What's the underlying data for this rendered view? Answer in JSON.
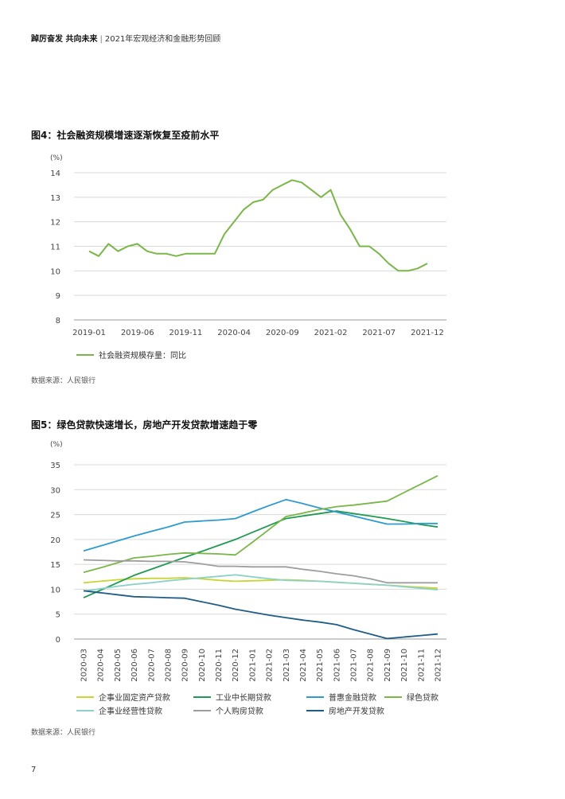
{
  "header": {
    "bold": "踔厉奋发 共向未来",
    "separator": "|",
    "subtitle": "2021年宏观经济和金融形势回顾"
  },
  "page_number": "7",
  "figures": [
    {
      "title": "图4：社会融资规模增速逐渐恢复至疫前水平",
      "unit": "(%)",
      "source": "数据来源：人民银行"
    },
    {
      "title": "图5：绿色贷款快速增长，房地产开发贷款增速趋于零",
      "unit": "(%)",
      "source": "数据来源：人民银行"
    }
  ],
  "chart_data": [
    {
      "type": "line",
      "title": "图4：社会融资规模增速逐渐恢复至疫前水平",
      "ylabel": "(%)",
      "ylim": [
        8,
        14
      ],
      "yticks": [
        8,
        9,
        10,
        11,
        12,
        13,
        14
      ],
      "grid": true,
      "legend_position": "bottom-left",
      "x": [
        "2019-01",
        "2019-02",
        "2019-03",
        "2019-04",
        "2019-05",
        "2019-06",
        "2019-07",
        "2019-08",
        "2019-09",
        "2019-10",
        "2019-11",
        "2019-12",
        "2020-01",
        "2020-02",
        "2020-03",
        "2020-04",
        "2020-05",
        "2020-06",
        "2020-07",
        "2020-08",
        "2020-09",
        "2020-10",
        "2020-11",
        "2020-12",
        "2021-01",
        "2021-02",
        "2021-03",
        "2021-04",
        "2021-05",
        "2021-06",
        "2021-07",
        "2021-08",
        "2021-09",
        "2021-10",
        "2021-11",
        "2021-12"
      ],
      "xticks": [
        "2019-01",
        "2019-06",
        "2019-11",
        "2020-04",
        "2020-09",
        "2021-02",
        "2021-07",
        "2021-12"
      ],
      "xticks_faded": [
        "2019-01",
        "2019-06",
        "2019-11"
      ],
      "series": [
        {
          "name": "社会融资规模存量：同比",
          "color": "#7ab648",
          "values": [
            10.8,
            10.6,
            11.1,
            10.8,
            11.0,
            11.1,
            10.8,
            10.7,
            10.7,
            10.6,
            10.7,
            10.7,
            10.7,
            10.7,
            11.5,
            12.0,
            12.5,
            12.8,
            12.9,
            13.3,
            13.5,
            13.7,
            13.6,
            13.3,
            13.0,
            13.3,
            12.3,
            11.7,
            11.0,
            11.0,
            10.7,
            10.3,
            10.0,
            10.0,
            10.1,
            10.3
          ]
        }
      ]
    },
    {
      "type": "line",
      "title": "图5：绿色贷款快速增长，房地产开发贷款增速趋于零",
      "ylabel": "(%)",
      "ylim": [
        0,
        35
      ],
      "yticks": [
        0,
        5,
        10,
        15,
        20,
        25,
        30,
        35
      ],
      "grid": true,
      "legend_position": "bottom",
      "x": [
        "2020-03",
        "2020-04",
        "2020-05",
        "2020-06",
        "2020-07",
        "2020-08",
        "2020-09",
        "2020-10",
        "2020-11",
        "2020-12",
        "2021-01",
        "2021-02",
        "2021-03",
        "2021-04",
        "2021-05",
        "2021-06",
        "2021-07",
        "2021-08",
        "2021-09",
        "2021-10",
        "2021-11",
        "2021-12"
      ],
      "series": [
        {
          "name": "企事业固定资产贷款",
          "color": "#c9d531",
          "values": [
            11.3,
            11.6,
            11.9,
            12.1,
            12.2,
            12.2,
            12.3,
            12.1,
            11.8,
            11.6,
            11.7,
            11.8,
            11.9,
            11.8,
            11.6,
            11.4,
            11.2,
            11.0,
            10.8,
            10.6,
            10.4,
            10.2
          ]
        },
        {
          "name": "工业中长期贷款",
          "color": "#219a52",
          "values": [
            8.3,
            9.8,
            11.3,
            12.8,
            14.0,
            15.2,
            16.4,
            17.6,
            18.8,
            20.0,
            21.4,
            22.8,
            24.2,
            24.7,
            25.2,
            25.7,
            25.2,
            24.7,
            24.2,
            23.6,
            23.0,
            22.5
          ]
        },
        {
          "name": "普惠金融贷款",
          "color": "#2e9bce",
          "values": [
            17.7,
            18.7,
            19.7,
            20.7,
            21.6,
            22.5,
            23.5,
            23.7,
            23.9,
            24.2,
            25.5,
            26.8,
            28.0,
            27.2,
            26.3,
            25.5,
            24.7,
            23.9,
            23.1,
            23.1,
            23.2,
            23.2
          ]
        },
        {
          "name": "绿色贷款",
          "color": "#7ab648",
          "values": [
            13.4,
            14.3,
            15.3,
            16.3,
            16.6,
            17.0,
            17.3,
            17.2,
            17.1,
            16.9,
            19.4,
            22.0,
            24.6,
            25.3,
            26.0,
            26.6,
            26.9,
            27.3,
            27.7,
            29.4,
            31.1,
            32.8
          ]
        },
        {
          "name": "企事业经营性贷款",
          "color": "#8fd1c8",
          "values": [
            9.6,
            10.1,
            10.6,
            11.0,
            11.3,
            11.7,
            12.0,
            12.3,
            12.6,
            12.9,
            12.5,
            12.1,
            11.8,
            11.7,
            11.6,
            11.4,
            11.2,
            11.0,
            10.8,
            10.5,
            10.2,
            9.9
          ]
        },
        {
          "name": "个人购房贷款",
          "color": "#9e9e9e",
          "values": [
            15.9,
            15.8,
            15.7,
            15.7,
            15.6,
            15.6,
            15.5,
            15.1,
            14.6,
            14.6,
            14.5,
            14.5,
            14.5,
            14.0,
            13.6,
            13.1,
            12.7,
            12.1,
            11.3,
            11.3,
            11.3,
            11.3
          ]
        },
        {
          "name": "房地产开发贷款",
          "color": "#1f5d85",
          "values": [
            9.7,
            9.3,
            8.9,
            8.5,
            8.4,
            8.3,
            8.2,
            7.5,
            6.8,
            6.0,
            5.4,
            4.8,
            4.3,
            3.8,
            3.4,
            2.9,
            1.9,
            1.0,
            0.1,
            0.4,
            0.7,
            1.0
          ]
        }
      ]
    }
  ]
}
